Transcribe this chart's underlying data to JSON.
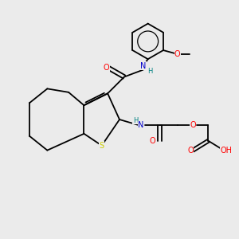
{
  "background_color": "#ebebeb",
  "atom_colors": {
    "C": "#000000",
    "N": "#0000cc",
    "O": "#ff0000",
    "S": "#cccc00",
    "H": "#008080"
  },
  "figsize": [
    3.0,
    3.0
  ],
  "dpi": 100,
  "lw": 1.3,
  "fs": 7.0,
  "fs_small": 6.0
}
